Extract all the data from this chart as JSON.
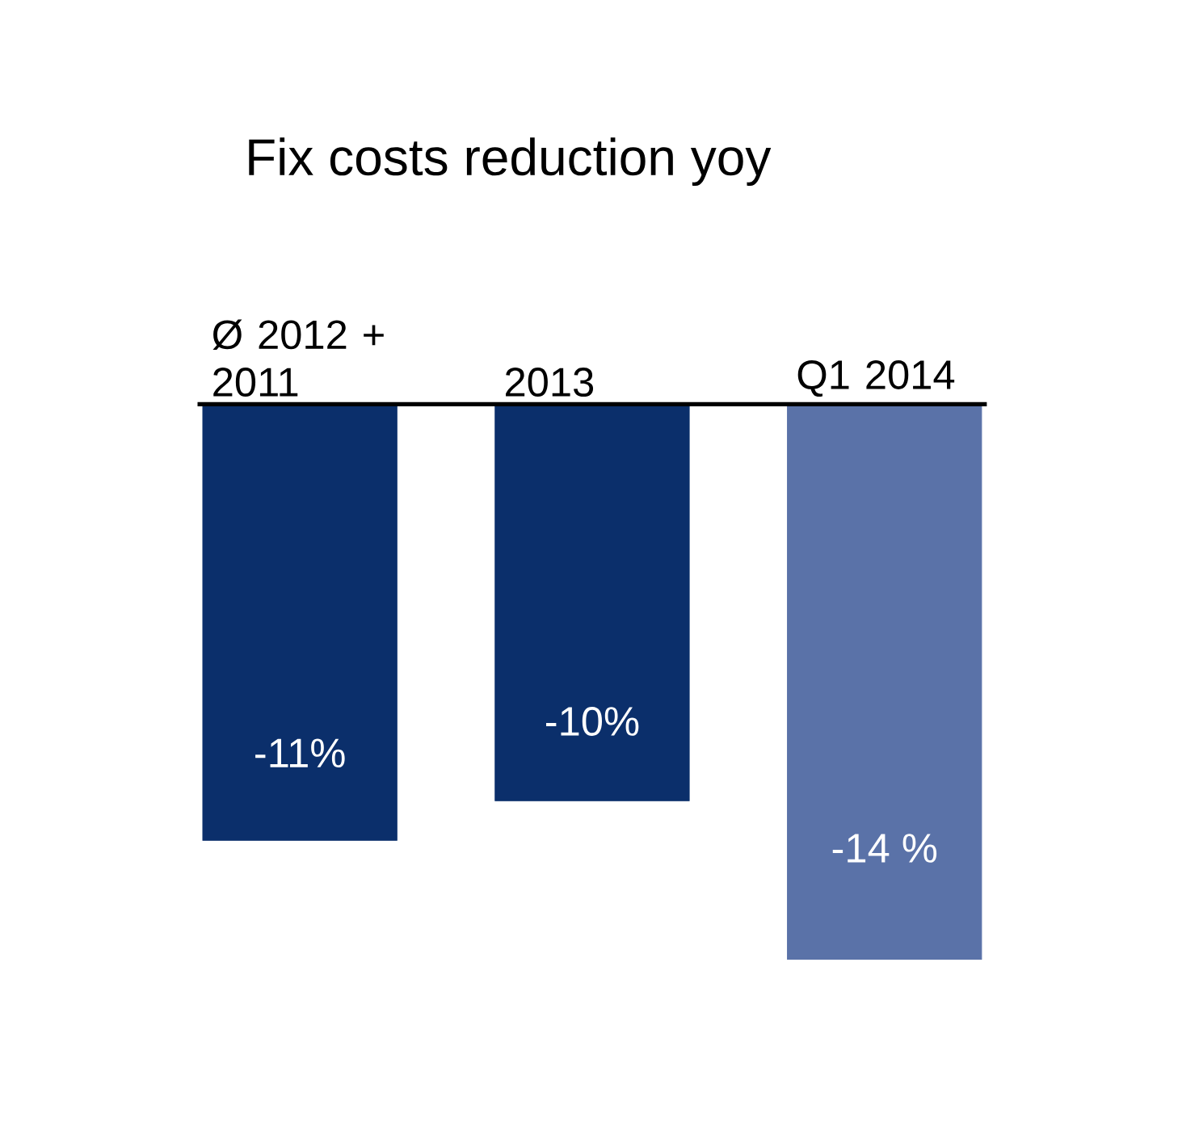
{
  "chart_data": {
    "type": "bar",
    "title": "Fix costs reduction yoy",
    "categories": [
      "Ø 2012 + 2011",
      "2013",
      "Q1 2014"
    ],
    "values": [
      -11,
      -10,
      -14
    ],
    "value_labels": [
      "-11%",
      "-10%",
      "-14 %"
    ],
    "colors": [
      "#0b2f6b",
      "#0b2f6b",
      "#5a72a8"
    ]
  }
}
